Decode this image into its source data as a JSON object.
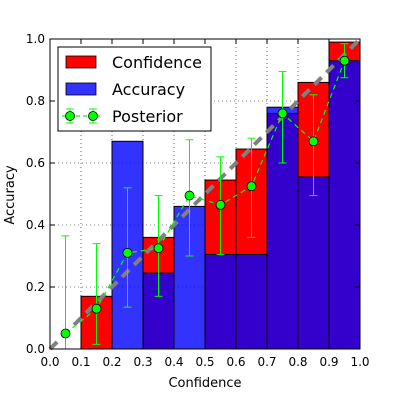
{
  "chart_data": {
    "type": "bar",
    "title": "",
    "xlabel": "Confidence",
    "ylabel": "Accuracy",
    "xlim": [
      0.0,
      1.0
    ],
    "ylim": [
      0.0,
      1.0
    ],
    "grid": true,
    "legend_position": "top-left",
    "bins": [
      0.0,
      0.1,
      0.2,
      0.3,
      0.4,
      0.5,
      0.6,
      0.7,
      0.8,
      0.9
    ],
    "bin_width": 0.1,
    "x_ticks": [
      "0.0",
      "0.1",
      "0.2",
      "0.3",
      "0.4",
      "0.5",
      "0.6",
      "0.7",
      "0.8",
      "0.9",
      "1.0"
    ],
    "y_ticks": [
      "0.0",
      "0.2",
      "0.4",
      "0.6",
      "0.8",
      "1.0"
    ],
    "series": [
      {
        "name": "Confidence",
        "color": "#ff0000",
        "values": [
          null,
          0.17,
          null,
          0.36,
          null,
          0.545,
          0.645,
          0.76,
          0.86,
          0.99
        ]
      },
      {
        "name": "Accuracy",
        "color": "#0000ff",
        "values": [
          null,
          0.0,
          0.67,
          0.245,
          0.46,
          0.305,
          0.305,
          0.78,
          0.555,
          0.93
        ]
      },
      {
        "name": "Posterior",
        "color": "#00ff00",
        "marker": "circle",
        "x": [
          0.05,
          0.15,
          0.25,
          0.35,
          0.45,
          0.55,
          0.65,
          0.75,
          0.85,
          0.95
        ],
        "y": [
          0.05,
          0.13,
          0.31,
          0.325,
          0.495,
          0.465,
          0.525,
          0.76,
          0.67,
          0.93
        ],
        "err_low": [
          0.0,
          0.015,
          0.135,
          0.17,
          0.3,
          0.305,
          0.36,
          0.6,
          0.495,
          0.875
        ],
        "err_high": [
          0.365,
          0.34,
          0.52,
          0.495,
          0.675,
          0.62,
          0.68,
          0.895,
          0.82,
          0.985
        ]
      }
    ],
    "reference_line": {
      "name": "perfect calibration",
      "from": [
        0.0,
        0.0
      ],
      "to": [
        1.0,
        1.0
      ],
      "color": "#808080"
    }
  }
}
